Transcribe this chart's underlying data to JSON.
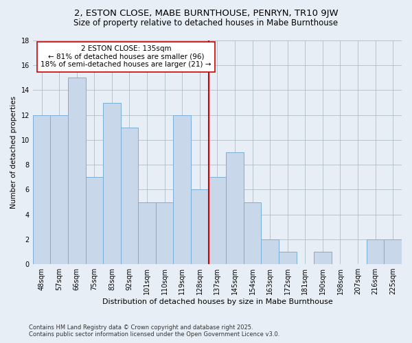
{
  "title1": "2, ESTON CLOSE, MABE BURNTHOUSE, PENRYN, TR10 9JW",
  "title2": "Size of property relative to detached houses in Mabe Burnthouse",
  "xlabel": "Distribution of detached houses by size in Mabe Burnthouse",
  "ylabel": "Number of detached properties",
  "categories": [
    "48sqm",
    "57sqm",
    "66sqm",
    "75sqm",
    "83sqm",
    "92sqm",
    "101sqm",
    "110sqm",
    "119sqm",
    "128sqm",
    "137sqm",
    "145sqm",
    "154sqm",
    "163sqm",
    "172sqm",
    "181sqm",
    "190sqm",
    "198sqm",
    "207sqm",
    "216sqm",
    "225sqm"
  ],
  "values": [
    12,
    12,
    15,
    7,
    13,
    11,
    5,
    5,
    12,
    6,
    7,
    9,
    5,
    2,
    1,
    0,
    1,
    0,
    0,
    2,
    2
  ],
  "bar_color": "#c8d8ea",
  "bar_edge_color": "#7aaed6",
  "reference_line_index": 10,
  "annotation_text": "2 ESTON CLOSE: 135sqm\n← 81% of detached houses are smaller (96)\n18% of semi-detached houses are larger (21) →",
  "annotation_box_facecolor": "#ffffff",
  "annotation_box_edgecolor": "#cc0000",
  "reference_line_color": "#cc0000",
  "ylim": [
    0,
    18
  ],
  "yticks": [
    0,
    2,
    4,
    6,
    8,
    10,
    12,
    14,
    16,
    18
  ],
  "footer_text": "Contains HM Land Registry data © Crown copyright and database right 2025.\nContains public sector information licensed under the Open Government Licence v3.0.",
  "bg_color": "#e8eef5",
  "plot_bg_color": "#e8eef5",
  "grid_color": "#b0bec5",
  "title1_fontsize": 9.5,
  "title2_fontsize": 8.5,
  "xlabel_fontsize": 8,
  "ylabel_fontsize": 7.5,
  "tick_fontsize": 7,
  "annotation_fontsize": 7.5,
  "footer_fontsize": 6
}
